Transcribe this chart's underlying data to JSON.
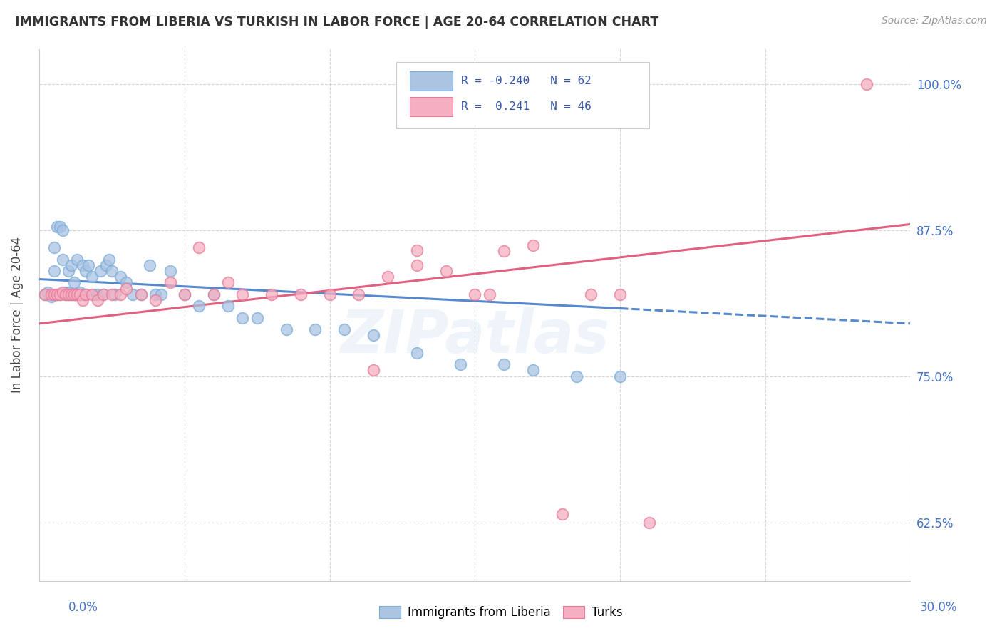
{
  "title": "IMMIGRANTS FROM LIBERIA VS TURKISH IN LABOR FORCE | AGE 20-64 CORRELATION CHART",
  "source": "Source: ZipAtlas.com",
  "ylabel": "In Labor Force | Age 20-64",
  "xlim": [
    0.0,
    0.3
  ],
  "ylim": [
    0.575,
    1.03
  ],
  "yticks": [
    0.625,
    0.75,
    0.875,
    1.0
  ],
  "ytick_labels": [
    "62.5%",
    "75.0%",
    "87.5%",
    "100.0%"
  ],
  "xtick_show_left": "0.0%",
  "xtick_show_right": "30.0%",
  "legend_R_liberia": "-0.240",
  "legend_N_liberia": "62",
  "legend_R_turks": " 0.241",
  "legend_N_turks": "46",
  "color_liberia": "#aac4e2",
  "color_turks": "#f5afc0",
  "edge_liberia": "#7aacda",
  "edge_turks": "#e8789a",
  "line_color_liberia": "#5588cc",
  "line_color_turks": "#e06080",
  "background_color": "#ffffff",
  "watermark": "ZIPatlas",
  "grid_color": "#cccccc",
  "liberia_x": [
    0.002,
    0.003,
    0.004,
    0.005,
    0.005,
    0.006,
    0.006,
    0.007,
    0.007,
    0.008,
    0.008,
    0.009,
    0.009,
    0.01,
    0.01,
    0.01,
    0.011,
    0.011,
    0.012,
    0.012,
    0.013,
    0.013,
    0.014,
    0.014,
    0.015,
    0.015,
    0.016,
    0.016,
    0.017,
    0.018,
    0.019,
    0.02,
    0.021,
    0.022,
    0.023,
    0.024,
    0.025,
    0.026,
    0.028,
    0.03,
    0.032,
    0.035,
    0.038,
    0.04,
    0.042,
    0.045,
    0.05,
    0.055,
    0.06,
    0.065,
    0.07,
    0.075,
    0.085,
    0.095,
    0.105,
    0.115,
    0.13,
    0.145,
    0.16,
    0.17,
    0.185,
    0.2
  ],
  "liberia_y": [
    0.82,
    0.822,
    0.818,
    0.84,
    0.86,
    0.82,
    0.878,
    0.878,
    0.82,
    0.85,
    0.875,
    0.82,
    0.822,
    0.82,
    0.822,
    0.84,
    0.82,
    0.845,
    0.82,
    0.83,
    0.82,
    0.85,
    0.82,
    0.822,
    0.82,
    0.845,
    0.82,
    0.84,
    0.845,
    0.835,
    0.82,
    0.82,
    0.84,
    0.82,
    0.845,
    0.85,
    0.84,
    0.82,
    0.835,
    0.83,
    0.82,
    0.82,
    0.845,
    0.82,
    0.82,
    0.84,
    0.82,
    0.81,
    0.82,
    0.81,
    0.8,
    0.8,
    0.79,
    0.79,
    0.79,
    0.785,
    0.77,
    0.76,
    0.76,
    0.755,
    0.75,
    0.75
  ],
  "turks_x": [
    0.002,
    0.004,
    0.005,
    0.006,
    0.007,
    0.008,
    0.009,
    0.01,
    0.011,
    0.012,
    0.013,
    0.014,
    0.015,
    0.016,
    0.018,
    0.02,
    0.022,
    0.025,
    0.028,
    0.03,
    0.035,
    0.04,
    0.045,
    0.05,
    0.055,
    0.06,
    0.065,
    0.07,
    0.08,
    0.09,
    0.1,
    0.11,
    0.12,
    0.13,
    0.14,
    0.15,
    0.16,
    0.17,
    0.19,
    0.115,
    0.2,
    0.21,
    0.18,
    0.155,
    0.285,
    0.13
  ],
  "turks_y": [
    0.82,
    0.82,
    0.82,
    0.82,
    0.82,
    0.822,
    0.82,
    0.82,
    0.82,
    0.82,
    0.82,
    0.82,
    0.815,
    0.82,
    0.82,
    0.815,
    0.82,
    0.82,
    0.82,
    0.825,
    0.82,
    0.815,
    0.83,
    0.82,
    0.86,
    0.82,
    0.83,
    0.82,
    0.82,
    0.82,
    0.82,
    0.82,
    0.835,
    0.845,
    0.84,
    0.82,
    0.857,
    0.862,
    0.82,
    0.755,
    0.82,
    0.625,
    0.632,
    0.82,
    1.0,
    0.858
  ],
  "line_lib_x0": 0.0,
  "line_lib_y0": 0.833,
  "line_lib_x1": 0.2,
  "line_lib_y1": 0.808,
  "line_lib_dash_x0": 0.2,
  "line_lib_dash_y0": 0.808,
  "line_lib_dash_x1": 0.3,
  "line_lib_dash_y1": 0.795,
  "line_turk_x0": 0.0,
  "line_turk_y0": 0.795,
  "line_turk_x1": 0.3,
  "line_turk_y1": 0.88
}
